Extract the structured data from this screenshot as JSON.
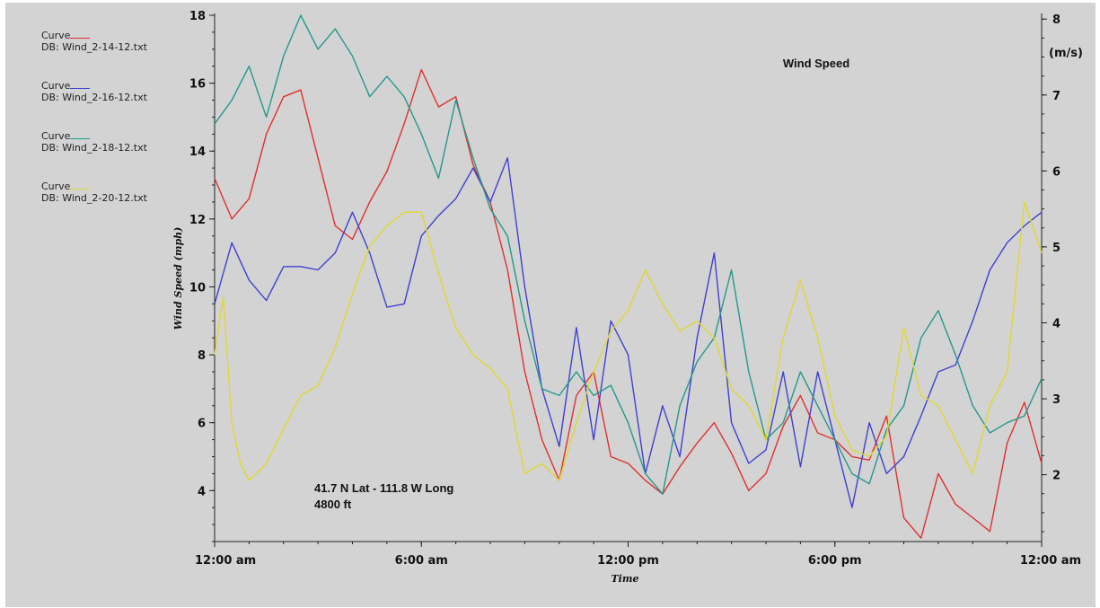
{
  "chart_data": {
    "type": "line",
    "title": "Wind Speed",
    "xlabel": "Time",
    "ylabel": "Wind Speed (mph)",
    "y2label": "(m/s)",
    "xlim": [
      0,
      24
    ],
    "ylim": [
      2.5,
      18
    ],
    "y2lim": [
      1.12,
      8.05
    ],
    "x_ticks": [
      0,
      6,
      12,
      18,
      24
    ],
    "x_tick_labels": [
      "12:00 am",
      "6:00 am",
      "12:00 pm",
      "6:00 pm",
      "12:00 am"
    ],
    "y_ticks": [
      4,
      6,
      8,
      10,
      12,
      14,
      16,
      18
    ],
    "y2_ticks": [
      2,
      3,
      4,
      5,
      6,
      7,
      8
    ],
    "annotations": [
      "41.7 N Lat - 111.8 W Long",
      "4800 ft"
    ],
    "legend_placement": "left",
    "series": [
      {
        "name": "Curve\nDB: Wind_2-14-12.txt",
        "color": "#e03030",
        "x": [
          0,
          0.5,
          1,
          1.5,
          2,
          2.5,
          3,
          3.5,
          4,
          4.5,
          5,
          5.5,
          6,
          6.5,
          7,
          7.5,
          8,
          8.5,
          9,
          9.5,
          10,
          10.5,
          11,
          11.5,
          12,
          12.5,
          13,
          13.5,
          14,
          14.5,
          15,
          15.5,
          16,
          16.5,
          17,
          17.5,
          18,
          18.5,
          19,
          19.5,
          20,
          20.5,
          21,
          21.5,
          22,
          22.5,
          23,
          23.5,
          24
        ],
        "y": [
          13.2,
          12,
          12.6,
          14.5,
          15.6,
          15.8,
          13.8,
          11.8,
          11.4,
          12.5,
          13.4,
          14.8,
          16.4,
          15.3,
          15.6,
          13.6,
          12.5,
          10.5,
          7.5,
          5.5,
          4.3,
          6.8,
          7.5,
          5,
          4.8,
          4.3,
          3.9,
          4.7,
          5.4,
          6,
          5.1,
          4,
          4.5,
          5.9,
          6.8,
          5.7,
          5.5,
          5,
          4.9,
          6.2,
          3.2,
          2.6,
          4.5,
          3.6,
          3.2,
          2.8,
          5.4,
          6.6,
          4.8
        ]
      },
      {
        "name": "Curve\nDB: Wind_2-16-12.txt",
        "color": "#4040d0",
        "x": [
          0,
          0.5,
          1,
          1.5,
          2,
          2.5,
          3,
          3.5,
          4,
          4.5,
          5,
          5.5,
          6,
          6.5,
          7,
          7.5,
          8,
          8.5,
          9,
          9.5,
          10,
          10.5,
          11,
          11.5,
          12,
          12.5,
          13,
          13.5,
          14,
          14.5,
          15,
          15.5,
          16,
          16.5,
          17,
          17.5,
          18,
          18.5,
          19,
          19.5,
          20,
          20.5,
          21,
          21.5,
          22,
          22.5,
          23,
          23.5,
          24
        ],
        "y": [
          9.5,
          11.3,
          10.2,
          9.6,
          10.6,
          10.6,
          10.5,
          11,
          12.2,
          11,
          9.4,
          9.5,
          11.5,
          12.1,
          12.6,
          13.5,
          12.5,
          13.8,
          10,
          7,
          5.3,
          8.8,
          5.5,
          9,
          8,
          4.5,
          6.5,
          5,
          8.5,
          11,
          6,
          4.8,
          5.2,
          7.5,
          4.7,
          7.5,
          5.5,
          3.5,
          6,
          4.5,
          5,
          6.2,
          7.5,
          7.7,
          9,
          10.5,
          11.3,
          11.8,
          12.2
        ]
      },
      {
        "name": "Curve\nDB: Wind_2-18-12.txt",
        "color": "#229a8a",
        "x": [
          0,
          0.5,
          1,
          1.5,
          2,
          2.5,
          3,
          3.5,
          4,
          4.5,
          5,
          5.5,
          6,
          6.5,
          7,
          7.5,
          8,
          8.5,
          9,
          9.5,
          10,
          10.5,
          11,
          11.5,
          12,
          12.5,
          13,
          13.5,
          14,
          14.5,
          15,
          15.5,
          16,
          16.5,
          17,
          17.5,
          18,
          18.5,
          19,
          19.5,
          20,
          20.5,
          21,
          21.5,
          22,
          22.5,
          23,
          23.5,
          24
        ],
        "y": [
          14.8,
          15.5,
          16.5,
          15,
          16.8,
          18,
          17,
          17.6,
          16.8,
          15.6,
          16.2,
          15.6,
          14.5,
          13.2,
          15.5,
          13.8,
          12.3,
          11.5,
          9,
          7,
          6.8,
          7.5,
          6.8,
          7.1,
          6,
          4.5,
          3.9,
          6.5,
          7.8,
          8.5,
          10.5,
          7.5,
          5.5,
          6,
          7.5,
          6.5,
          5.5,
          4.5,
          4.2,
          5.8,
          6.5,
          8.5,
          9.3,
          8,
          6.5,
          5.7,
          6,
          6.2,
          7.3
        ]
      },
      {
        "name": "Curve\nDB: Wind_2-20-12.txt",
        "color": "#e0d830",
        "x": [
          0,
          0.25,
          0.5,
          0.75,
          1,
          1.5,
          2,
          2.5,
          3,
          3.5,
          4,
          4.5,
          5,
          5.5,
          6,
          6.5,
          7,
          7.5,
          8,
          8.5,
          9,
          9.5,
          10,
          10.5,
          11,
          11.5,
          12,
          12.5,
          13,
          13.5,
          14,
          14.5,
          15,
          15.5,
          16,
          16.5,
          17,
          17.5,
          18,
          18.5,
          19,
          19.5,
          20,
          20.5,
          21,
          21.5,
          22,
          22.5,
          23,
          23.5,
          24
        ],
        "y": [
          8,
          9.7,
          6,
          4.8,
          4.3,
          4.8,
          5.8,
          6.8,
          7.1,
          8.2,
          9.8,
          11.2,
          11.8,
          12.2,
          12.2,
          10.4,
          8.8,
          8,
          7.6,
          7,
          4.5,
          4.8,
          4.3,
          6,
          7.5,
          8.7,
          9.3,
          10.5,
          9.5,
          8.7,
          9,
          8.5,
          7,
          6.5,
          5.5,
          8.5,
          10.2,
          8.5,
          6.2,
          5.2,
          5,
          5.6,
          8.8,
          6.8,
          6.5,
          5.5,
          4.5,
          6.5,
          7.5,
          12.5,
          11
        ]
      }
    ]
  }
}
